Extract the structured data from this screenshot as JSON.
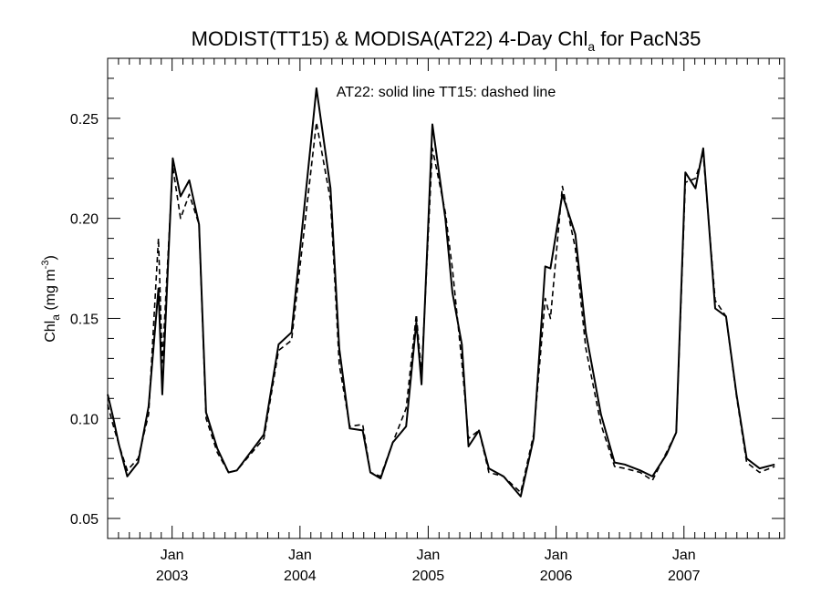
{
  "chart_data": {
    "type": "line",
    "title": "MODIST(TT15) & MODISA(AT22) 4-Day Chl",
    "title_subscript": "a",
    "title_suffix": " for PacN35",
    "annotation": "AT22: solid line   TT15: dashed line",
    "ylabel": "Chl",
    "ylabel_subscript": "a",
    "ylabel_units_prefix": " (mg m",
    "ylabel_units_superscript": "-3",
    "ylabel_units_suffix": ")",
    "ylim": [
      0.04,
      0.28
    ],
    "yticks": [
      0.05,
      0.1,
      0.15,
      0.2,
      0.25
    ],
    "ytick_labels": [
      "0.05",
      "0.10",
      "0.15",
      "0.20",
      "0.25"
    ],
    "xlim": [
      "2002-07-01",
      "2007-10-15"
    ],
    "xticks": [
      "2003-01-01",
      "2004-01-01",
      "2005-01-01",
      "2006-01-01",
      "2007-01-01"
    ],
    "xtick_labels": [
      {
        "month": "Jan",
        "year": "2003"
      },
      {
        "month": "Jan",
        "year": "2004"
      },
      {
        "month": "Jan",
        "year": "2005"
      },
      {
        "month": "Jan",
        "year": "2006"
      },
      {
        "month": "Jan",
        "year": "2007"
      }
    ],
    "grid": false,
    "series": [
      {
        "style": "solid",
        "color": "#000000",
        "points": [
          [
            "2002-07-01",
            0.112
          ],
          [
            "2002-07-16",
            0.101
          ],
          [
            "2002-08-02",
            0.087
          ],
          [
            "2002-08-26",
            0.071
          ],
          [
            "2002-09-26",
            0.078
          ],
          [
            "2002-10-26",
            0.106
          ],
          [
            "2002-11-23",
            0.165
          ],
          [
            "2002-12-04",
            0.112
          ],
          [
            "2003-01-03",
            0.23
          ],
          [
            "2003-01-25",
            0.211
          ],
          [
            "2003-02-19",
            0.219
          ],
          [
            "2003-03-19",
            0.197
          ],
          [
            "2003-04-08",
            0.103
          ],
          [
            "2003-05-10",
            0.085
          ],
          [
            "2003-06-11",
            0.073
          ],
          [
            "2003-07-05",
            0.074
          ],
          [
            "2003-09-20",
            0.092
          ],
          [
            "2003-11-01",
            0.137
          ],
          [
            "2003-12-08",
            0.143
          ],
          [
            "2004-02-17",
            0.265
          ],
          [
            "2004-03-28",
            0.215
          ],
          [
            "2004-04-22",
            0.135
          ],
          [
            "2004-05-22",
            0.095
          ],
          [
            "2004-06-28",
            0.094
          ],
          [
            "2004-07-20",
            0.073
          ],
          [
            "2004-08-18",
            0.07
          ],
          [
            "2004-09-22",
            0.088
          ],
          [
            "2004-10-30",
            0.096
          ],
          [
            "2004-11-28",
            0.148
          ],
          [
            "2004-12-13",
            0.117
          ],
          [
            "2005-01-13",
            0.247
          ],
          [
            "2005-02-19",
            0.2
          ],
          [
            "2005-03-11",
            0.163
          ],
          [
            "2005-04-07",
            0.137
          ],
          [
            "2005-04-26",
            0.086
          ],
          [
            "2005-05-26",
            0.094
          ],
          [
            "2005-06-23",
            0.075
          ],
          [
            "2005-08-04",
            0.071
          ],
          [
            "2005-09-22",
            0.061
          ],
          [
            "2005-10-29",
            0.09
          ],
          [
            "2005-12-01",
            0.176
          ],
          [
            "2005-12-16",
            0.175
          ],
          [
            "2006-01-19",
            0.212
          ],
          [
            "2006-02-25",
            0.192
          ],
          [
            "2006-03-27",
            0.143
          ],
          [
            "2006-05-09",
            0.102
          ],
          [
            "2006-06-17",
            0.078
          ],
          [
            "2006-07-16",
            0.077
          ],
          [
            "2006-08-29",
            0.074
          ],
          [
            "2006-10-03",
            0.071
          ],
          [
            "2006-11-12",
            0.082
          ],
          [
            "2006-12-10",
            0.093
          ],
          [
            "2007-01-05",
            0.223
          ],
          [
            "2007-02-03",
            0.215
          ],
          [
            "2007-02-25",
            0.235
          ],
          [
            "2007-03-31",
            0.155
          ],
          [
            "2007-05-01",
            0.151
          ],
          [
            "2007-05-31",
            0.112
          ],
          [
            "2007-06-29",
            0.08
          ],
          [
            "2007-08-05",
            0.075
          ],
          [
            "2007-09-17",
            0.077
          ]
        ]
      },
      {
        "style": "dashed",
        "color": "#000000",
        "points": [
          [
            "2002-07-01",
            0.107
          ],
          [
            "2002-07-16",
            0.097
          ],
          [
            "2002-08-02",
            0.087
          ],
          [
            "2002-08-26",
            0.074
          ],
          [
            "2002-09-26",
            0.08
          ],
          [
            "2002-10-26",
            0.102
          ],
          [
            "2002-11-23",
            0.19
          ],
          [
            "2002-12-04",
            0.128
          ],
          [
            "2003-01-03",
            0.226
          ],
          [
            "2003-01-25",
            0.2
          ],
          [
            "2003-02-19",
            0.212
          ],
          [
            "2003-03-19",
            0.197
          ],
          [
            "2003-04-08",
            0.1
          ],
          [
            "2003-05-10",
            0.083
          ],
          [
            "2003-06-11",
            0.073
          ],
          [
            "2003-07-05",
            0.074
          ],
          [
            "2003-09-20",
            0.09
          ],
          [
            "2003-11-01",
            0.134
          ],
          [
            "2003-12-08",
            0.139
          ],
          [
            "2004-02-17",
            0.248
          ],
          [
            "2004-03-28",
            0.209
          ],
          [
            "2004-04-22",
            0.127
          ],
          [
            "2004-05-22",
            0.096
          ],
          [
            "2004-06-28",
            0.097
          ],
          [
            "2004-07-20",
            0.073
          ],
          [
            "2004-08-18",
            0.071
          ],
          [
            "2004-09-22",
            0.088
          ],
          [
            "2004-10-30",
            0.105
          ],
          [
            "2004-11-28",
            0.152
          ],
          [
            "2004-12-13",
            0.122
          ],
          [
            "2005-01-13",
            0.235
          ],
          [
            "2005-02-19",
            0.203
          ],
          [
            "2005-03-11",
            0.175
          ],
          [
            "2005-04-07",
            0.128
          ],
          [
            "2005-04-26",
            0.09
          ],
          [
            "2005-05-26",
            0.094
          ],
          [
            "2005-06-23",
            0.073
          ],
          [
            "2005-08-04",
            0.071
          ],
          [
            "2005-09-22",
            0.063
          ],
          [
            "2005-10-29",
            0.092
          ],
          [
            "2005-12-01",
            0.16
          ],
          [
            "2005-12-16",
            0.15
          ],
          [
            "2006-01-19",
            0.216
          ],
          [
            "2006-02-25",
            0.185
          ],
          [
            "2006-03-27",
            0.135
          ],
          [
            "2006-05-09",
            0.097
          ],
          [
            "2006-06-17",
            0.076
          ],
          [
            "2006-07-16",
            0.075
          ],
          [
            "2006-08-29",
            0.073
          ],
          [
            "2006-10-03",
            0.069
          ],
          [
            "2006-11-12",
            0.083
          ],
          [
            "2006-12-10",
            0.093
          ],
          [
            "2007-01-05",
            0.218
          ],
          [
            "2007-02-03",
            0.22
          ],
          [
            "2007-02-25",
            0.232
          ],
          [
            "2007-03-31",
            0.159
          ],
          [
            "2007-05-01",
            0.151
          ],
          [
            "2007-05-31",
            0.111
          ],
          [
            "2007-06-29",
            0.078
          ],
          [
            "2007-08-05",
            0.073
          ],
          [
            "2007-09-17",
            0.076
          ]
        ]
      }
    ]
  }
}
